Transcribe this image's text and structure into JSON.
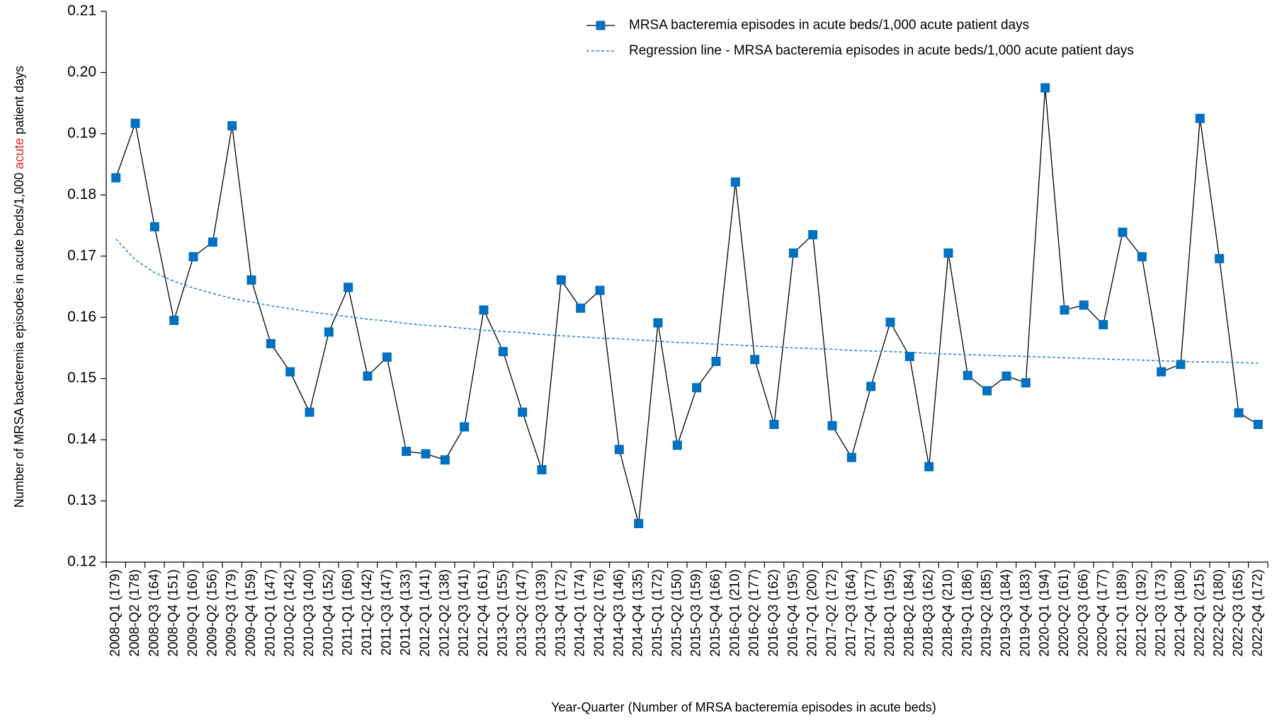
{
  "chart_data": {
    "type": "line",
    "x_label": "Year-Quarter (Number of MRSA bacteremia episodes in acute beds)",
    "y_label": [
      "Number of MRSA bacteremia episodes in acute beds/1,000 ",
      "acute",
      " patient days"
    ],
    "y_label_highlight_color": "#e8251f",
    "categories": [
      "2008-Q1 (179)",
      "2008-Q2 (178)",
      "2008-Q3 (164)",
      "2008-Q4 (151)",
      "2009-Q1 (160)",
      "2009-Q2 (156)",
      "2009-Q3 (179)",
      "2009-Q4 (159)",
      "2010-Q1 (147)",
      "2010-Q2 (142)",
      "2010-Q3 (140)",
      "2010-Q4 (152)",
      "2011-Q1 (160)",
      "2011-Q2 (142)",
      "2011-Q3 (147)",
      "2011-Q4 (133)",
      "2012-Q1 (141)",
      "2012-Q2 (138)",
      "2012-Q3 (141)",
      "2012-Q4 (161)",
      "2013-Q1 (155)",
      "2013-Q2 (147)",
      "2013-Q3 (139)",
      "2013-Q4 (172)",
      "2014-Q1 (174)",
      "2014-Q2 (176)",
      "2014-Q3 (146)",
      "2014-Q4 (135)",
      "2015-Q1 (172)",
      "2015-Q2 (150)",
      "2015-Q3 (159)",
      "2015-Q4 (166)",
      "2016-Q1 (210)",
      "2016-Q2 (177)",
      "2016-Q3 (162)",
      "2016-Q4 (195)",
      "2017-Q1 (200)",
      "2017-Q2 (172)",
      "2017-Q3 (164)",
      "2017-Q4 (177)",
      "2018-Q1 (195)",
      "2018-Q2 (184)",
      "2018-Q3 (162)",
      "2018-Q4 (210)",
      "2019-Q1 (186)",
      "2019-Q2 (185)",
      "2019-Q3 (184)",
      "2019-Q4 (183)",
      "2020-Q1 (194)",
      "2020-Q2 (161)",
      "2020-Q3 (166)",
      "2020-Q4 (177)",
      "2021-Q1 (189)",
      "2021-Q2 (192)",
      "2021-Q3 (173)",
      "2021-Q4 (180)",
      "2022-Q1 (215)",
      "2022-Q2 (180)",
      "2022-Q3 (165)",
      "2022-Q4 (172)"
    ],
    "series": [
      {
        "name": "MRSA bacteremia episodes in acute beds/1,000 acute patient days",
        "color": "#0070c0",
        "line_color": "#000000",
        "marker": "square",
        "values": [
          0.1828,
          0.1917,
          0.1748,
          0.1595,
          0.1699,
          0.1723,
          0.1913,
          0.1661,
          0.1557,
          0.1511,
          0.1445,
          0.1576,
          0.1649,
          0.1504,
          0.1535,
          0.1381,
          0.1377,
          0.1367,
          0.1421,
          0.1612,
          0.1544,
          0.1445,
          0.1351,
          0.1661,
          0.1615,
          0.1644,
          0.1384,
          0.1263,
          0.1591,
          0.1391,
          0.1485,
          0.1528,
          0.1821,
          0.1531,
          0.1425,
          0.1705,
          0.1735,
          0.1423,
          0.1371,
          0.1487,
          0.1592,
          0.1536,
          0.1356,
          0.1705,
          0.1505,
          0.148,
          0.1504,
          0.1493,
          0.1975,
          0.1612,
          0.162,
          0.1588,
          0.1739,
          0.1699,
          0.1511,
          0.1523,
          0.1925,
          0.1696,
          0.1444,
          0.1425
        ]
      },
      {
        "name": "Regression line - MRSA bacteremia episodes in acute beds/1,000 acute patient days",
        "color": "#2e86d6",
        "dashed": true,
        "values": [
          0.1728,
          0.1694,
          0.1673,
          0.1659,
          0.1648,
          0.1639,
          0.1631,
          0.1625,
          0.1619,
          0.1614,
          0.1609,
          0.1605,
          0.1601,
          0.1597,
          0.1594,
          0.159,
          0.1587,
          0.1585,
          0.1582,
          0.1579,
          0.1577,
          0.1575,
          0.1572,
          0.157,
          0.1568,
          0.1566,
          0.1565,
          0.1563,
          0.1561,
          0.1559,
          0.1558,
          0.1556,
          0.1555,
          0.1553,
          0.1552,
          0.155,
          0.1549,
          0.1548,
          0.1546,
          0.1545,
          0.1544,
          0.1543,
          0.1541,
          0.154,
          0.1539,
          0.1538,
          0.1537,
          0.1536,
          0.1535,
          0.1534,
          0.1533,
          0.1532,
          0.1531,
          0.153,
          0.1529,
          0.1528,
          0.1527,
          0.1527,
          0.1526,
          0.1525
        ]
      }
    ],
    "ylim": [
      0.12,
      0.21
    ],
    "yticks": [
      0.12,
      0.13,
      0.14,
      0.15,
      0.16,
      0.17,
      0.18,
      0.19,
      {
        "value": 0.2,
        "label": "0.20"
      },
      0.21
    ],
    "grid": false,
    "legend": "top-right"
  }
}
